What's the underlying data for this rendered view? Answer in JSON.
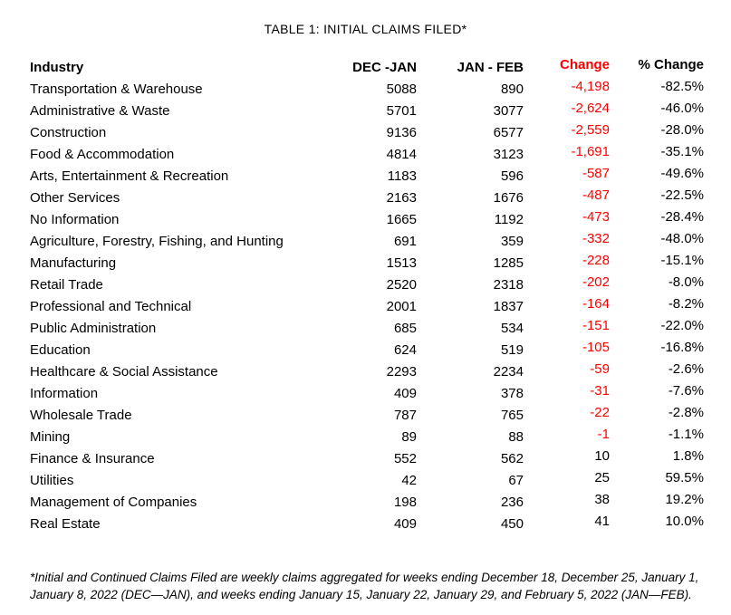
{
  "title": "TABLE 1: INITIAL CLAIMS FILED*",
  "chart_data": {
    "type": "table",
    "title": "TABLE 1: INITIAL CLAIMS FILED*",
    "columns": [
      "Industry",
      "DEC -JAN",
      "JAN - FEB",
      "Change",
      "% Change"
    ],
    "rows": [
      {
        "industry": "Transportation & Warehouse",
        "dec_jan": "5088",
        "jan_feb": "890",
        "change": "-4,198",
        "pct_change": "-82.5%"
      },
      {
        "industry": "Administrative & Waste",
        "dec_jan": "5701",
        "jan_feb": "3077",
        "change": "-2,624",
        "pct_change": "-46.0%"
      },
      {
        "industry": "Construction",
        "dec_jan": "9136",
        "jan_feb": "6577",
        "change": "-2,559",
        "pct_change": "-28.0%"
      },
      {
        "industry": "Food & Accommodation",
        "dec_jan": "4814",
        "jan_feb": "3123",
        "change": "-1,691",
        "pct_change": "-35.1%"
      },
      {
        "industry": "Arts, Entertainment & Recreation",
        "dec_jan": "1183",
        "jan_feb": "596",
        "change": "-587",
        "pct_change": "-49.6%"
      },
      {
        "industry": "Other Services",
        "dec_jan": "2163",
        "jan_feb": "1676",
        "change": "-487",
        "pct_change": "-22.5%"
      },
      {
        "industry": "No Information",
        "dec_jan": "1665",
        "jan_feb": "1192",
        "change": "-473",
        "pct_change": "-28.4%"
      },
      {
        "industry": "Agriculture, Forestry, Fishing, and Hunting",
        "dec_jan": "691",
        "jan_feb": "359",
        "change": "-332",
        "pct_change": "-48.0%"
      },
      {
        "industry": "Manufacturing",
        "dec_jan": "1513",
        "jan_feb": "1285",
        "change": "-228",
        "pct_change": "-15.1%"
      },
      {
        "industry": "Retail Trade",
        "dec_jan": "2520",
        "jan_feb": "2318",
        "change": "-202",
        "pct_change": "-8.0%"
      },
      {
        "industry": "Professional and Technical",
        "dec_jan": "2001",
        "jan_feb": "1837",
        "change": "-164",
        "pct_change": "-8.2%"
      },
      {
        "industry": "Public Administration",
        "dec_jan": "685",
        "jan_feb": "534",
        "change": "-151",
        "pct_change": "-22.0%"
      },
      {
        "industry": "Education",
        "dec_jan": "624",
        "jan_feb": "519",
        "change": "-105",
        "pct_change": "-16.8%"
      },
      {
        "industry": "Healthcare & Social Assistance",
        "dec_jan": "2293",
        "jan_feb": "2234",
        "change": "-59",
        "pct_change": "-2.6%"
      },
      {
        "industry": "Information",
        "dec_jan": "409",
        "jan_feb": "378",
        "change": "-31",
        "pct_change": "-7.6%"
      },
      {
        "industry": "Wholesale Trade",
        "dec_jan": "787",
        "jan_feb": "765",
        "change": "-22",
        "pct_change": "-2.8%"
      },
      {
        "industry": "Mining",
        "dec_jan": "89",
        "jan_feb": "88",
        "change": "-1",
        "pct_change": "-1.1%"
      },
      {
        "industry": "Finance & Insurance",
        "dec_jan": "552",
        "jan_feb": "562",
        "change": "10",
        "pct_change": "1.8%"
      },
      {
        "industry": "Utilities",
        "dec_jan": "42",
        "jan_feb": "67",
        "change": "25",
        "pct_change": "59.5%"
      },
      {
        "industry": "Management of Companies",
        "dec_jan": "198",
        "jan_feb": "236",
        "change": "38",
        "pct_change": "19.2%"
      },
      {
        "industry": "Real Estate",
        "dec_jan": "409",
        "jan_feb": "450",
        "change": "41",
        "pct_change": "10.0%"
      }
    ]
  },
  "footnote": {
    "lines": [
      "*Initial and Continued Claims Filed are weekly claims aggregated for weeks ending December 18, December 25, January 1,",
      "January 8, 2022 (DEC—JAN), and weeks ending January 15, January 22, January 29, and February 5, 2022 (JAN—FEB)."
    ]
  },
  "colors": {
    "negative_change": "#ff0000",
    "text": "#000000",
    "background": "#ffffff"
  }
}
